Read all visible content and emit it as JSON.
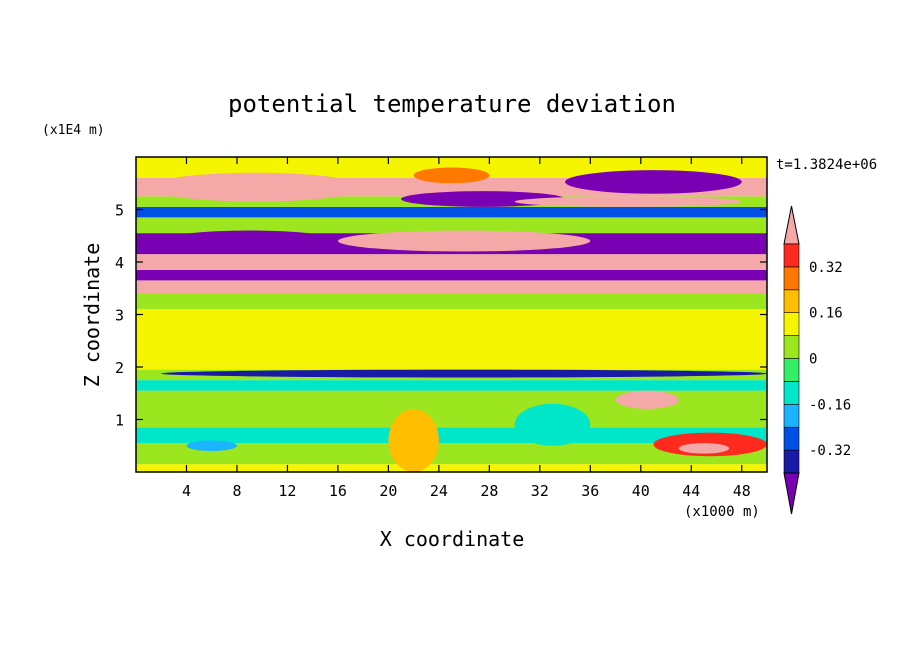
{
  "chart_data": {
    "type": "heatmap",
    "title": "potential temperature deviation",
    "xlabel": "X coordinate",
    "ylabel": "Z coordinate",
    "x_unit": "(x1000 m)",
    "y_unit": "(x1E4 m)",
    "time_label": "t=1.3824e+06",
    "xlim": [
      0,
      50
    ],
    "ylim": [
      0,
      6
    ],
    "x_ticks": [
      4,
      8,
      12,
      16,
      20,
      24,
      28,
      32,
      36,
      40,
      44,
      48
    ],
    "y_ticks": [
      1,
      2,
      3,
      4,
      5
    ],
    "colorbar": {
      "levels": [
        -0.4,
        -0.32,
        -0.24,
        -0.16,
        -0.08,
        0,
        0.08,
        0.16,
        0.24,
        0.32,
        0.4
      ],
      "tick_labels": [
        "0.32",
        "0.16",
        "0",
        "-0.16",
        "-0.32"
      ],
      "tick_values": [
        0.32,
        0.16,
        0,
        -0.16,
        -0.32
      ],
      "colors_low_to_high": [
        "#7a00b4",
        "#1a1aa8",
        "#0050e6",
        "#1cb4ff",
        "#00e6c8",
        "#33ee66",
        "#9be61e",
        "#f5f500",
        "#ffbe00",
        "#ff7800",
        "#ff2a1e",
        "#f4a8a8"
      ],
      "extend": "both"
    },
    "bands": [
      {
        "z": [
          0.0,
          0.15
        ],
        "value": 0.08
      },
      {
        "z": [
          0.15,
          0.55
        ],
        "value": 0.02
      },
      {
        "z": [
          0.55,
          0.85
        ],
        "value": -0.1
      },
      {
        "z": [
          0.85,
          1.55
        ],
        "value": 0.06
      },
      {
        "z": [
          1.55,
          1.75
        ],
        "value": -0.1
      },
      {
        "z": [
          1.75,
          1.95
        ],
        "value": 0.02
      },
      {
        "z": [
          1.95,
          2.05
        ],
        "value": 0.12
      },
      {
        "z": [
          2.05,
          3.1
        ],
        "value": 0.1
      },
      {
        "z": [
          3.1,
          3.4
        ],
        "value": 0.06
      },
      {
        "z": [
          3.4,
          3.65
        ],
        "value": 0.45
      },
      {
        "z": [
          3.65,
          3.85
        ],
        "value": -0.45
      },
      {
        "z": [
          3.85,
          4.15
        ],
        "value": 0.45
      },
      {
        "z": [
          4.15,
          4.55
        ],
        "value": -0.45
      },
      {
        "z": [
          4.55,
          4.85
        ],
        "value": 0.06
      },
      {
        "z": [
          4.85,
          5.05
        ],
        "value": -0.3
      },
      {
        "z": [
          5.05,
          5.25
        ],
        "value": 0.06
      },
      {
        "z": [
          5.25,
          5.6
        ],
        "value": 0.45
      },
      {
        "z": [
          5.6,
          6.0
        ],
        "value": 0.08
      }
    ],
    "features": [
      {
        "x": [
          1,
          18
        ],
        "z": [
          5.15,
          5.7
        ],
        "value": 0.45
      },
      {
        "x": [
          21,
          34
        ],
        "z": [
          5.05,
          5.35
        ],
        "value": -0.45
      },
      {
        "x": [
          22,
          28
        ],
        "z": [
          5.5,
          5.8
        ],
        "value": 0.3
      },
      {
        "x": [
          34,
          48
        ],
        "z": [
          5.3,
          5.75
        ],
        "value": -0.45
      },
      {
        "x": [
          30,
          48
        ],
        "z": [
          5.05,
          5.25
        ],
        "value": 0.45
      },
      {
        "x": [
          2,
          16
        ],
        "z": [
          4.2,
          4.6
        ],
        "value": -0.45
      },
      {
        "x": [
          16,
          36
        ],
        "z": [
          4.2,
          4.6
        ],
        "value": 0.45
      },
      {
        "x": [
          2,
          50
        ],
        "z": [
          1.8,
          1.95
        ],
        "value": -0.4
      },
      {
        "x": [
          38,
          43
        ],
        "z": [
          1.2,
          1.55
        ],
        "value": 0.4
      },
      {
        "x": [
          41,
          50
        ],
        "z": [
          0.3,
          0.75
        ],
        "value": 0.35
      },
      {
        "x": [
          43,
          47
        ],
        "z": [
          0.35,
          0.55
        ],
        "value": 0.45
      },
      {
        "x": [
          20,
          24
        ],
        "z": [
          0.0,
          1.2
        ],
        "value": 0.18
      },
      {
        "x": [
          4,
          8
        ],
        "z": [
          0.4,
          0.6
        ],
        "value": -0.2
      },
      {
        "x": [
          30,
          36
        ],
        "z": [
          0.5,
          1.3
        ],
        "value": -0.1
      }
    ]
  }
}
